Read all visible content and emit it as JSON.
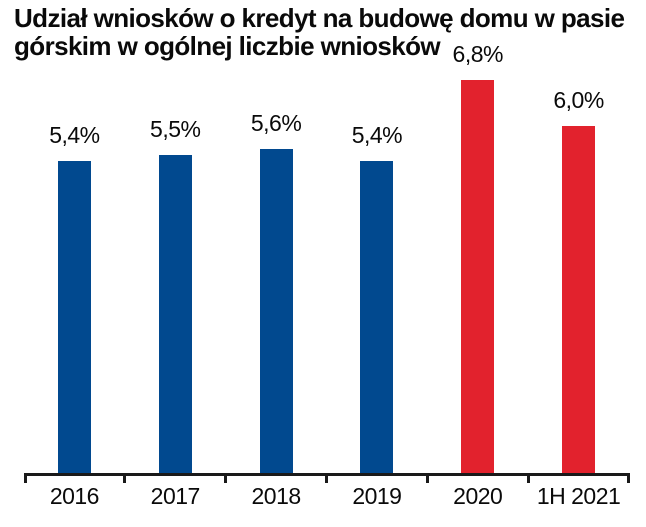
{
  "header": {
    "title_lines": [
      "Udział wniosków o kredyt na budowę domu w pasie",
      "górskim w ogólnej liczbie wniosków"
    ]
  },
  "colors": {
    "bar_blue": "#01498F",
    "bar_red": "#E2222D",
    "axis": "#1a1a1a",
    "text": "#0a0a0a",
    "background": "#ffffff"
  },
  "chart_data": {
    "type": "bar",
    "title": "Udział wniosków o kredyt na budowę domu w pasie górskim w ogólnej liczbie wniosków",
    "categories": [
      "2016",
      "2017",
      "2018",
      "2019",
      "2020",
      "1H 2021"
    ],
    "values": [
      5.4,
      5.5,
      5.6,
      5.4,
      6.8,
      6.0
    ],
    "value_labels": [
      "5,4%",
      "5,5%",
      "5,6%",
      "5,4%",
      "6,8%",
      "6,0%"
    ],
    "bar_colors": [
      "#01498F",
      "#01498F",
      "#01498F",
      "#01498F",
      "#E2222D",
      "#E2222D"
    ],
    "xlabel": "",
    "ylabel": "",
    "ylim": [
      0,
      7.2
    ],
    "grid": false,
    "legend": "none",
    "data_labels_position": "above-bars",
    "y_axis_visible": false,
    "x_axis_visible": true
  }
}
